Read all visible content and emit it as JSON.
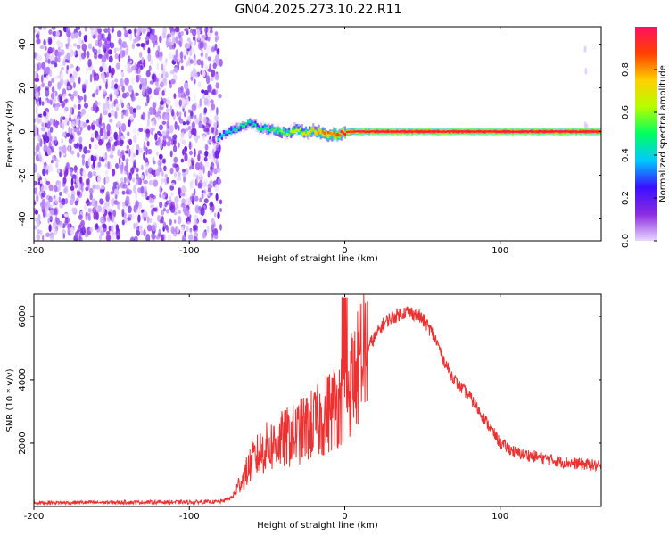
{
  "chart_data": [
    {
      "type": "heatmap",
      "title": "GN04.2025.273.10.22.R11",
      "xlabel": "Height of straight line (km)",
      "ylabel": "Frequency (Hz)",
      "xlim": [
        -200,
        165
      ],
      "ylim": [
        -50,
        48
      ],
      "xticks": [
        -200,
        -100,
        0,
        100
      ],
      "xtick_labels": [
        "-200",
        "-100",
        "0",
        "100"
      ],
      "yticks": [
        -40,
        -20,
        0,
        20,
        40
      ],
      "ytick_labels": [
        "-40",
        "-20",
        "0",
        "20",
        "40"
      ],
      "colorbar": {
        "label": "Normalized spectral amplitude",
        "range": [
          0,
          1
        ],
        "ticks": [
          0.0,
          0.2,
          0.4,
          0.6,
          0.8
        ],
        "tick_labels": [
          "0.0",
          "0.2",
          "0.4",
          "0.6",
          "0.8"
        ],
        "colors": [
          "#e9d6ff",
          "#8a2be2",
          "#3a10ff",
          "#00c8ff",
          "#00ff60",
          "#b4ff00",
          "#ffd000",
          "#ff4000",
          "#ff1060"
        ]
      },
      "noise_region_x": [
        -200,
        -82
      ],
      "signal_ridge": {
        "x": [
          -82,
          -75,
          -68,
          -62,
          -56,
          -50,
          -44,
          -38,
          -32,
          -26,
          -20,
          -14,
          -8,
          -2,
          5,
          20,
          60,
          100,
          165
        ],
        "freq": [
          -3,
          0,
          2,
          4,
          2,
          1,
          0.5,
          -1,
          1,
          -0.5,
          0.5,
          -1,
          -1.5,
          -0.5,
          0,
          0,
          0,
          0,
          0
        ],
        "amplitude": [
          0.35,
          0.38,
          0.4,
          0.42,
          0.4,
          0.45,
          0.5,
          0.55,
          0.6,
          0.65,
          0.7,
          0.75,
          0.8,
          0.85,
          0.9,
          0.95,
          0.95,
          0.95,
          0.95
        ]
      }
    },
    {
      "type": "line",
      "xlabel": "Height of straight line (km)",
      "ylabel": "SNR (10 * v/v)",
      "xlim": [
        -200,
        165
      ],
      "ylim": [
        0,
        6700
      ],
      "xticks": [
        -200,
        -100,
        0,
        100
      ],
      "xtick_labels": [
        "-200",
        "-100",
        "0",
        "100"
      ],
      "yticks": [
        2000,
        4000,
        6000
      ],
      "ytick_labels": [
        "2000",
        "4000",
        "6000"
      ],
      "color": "#ee3030",
      "series": [
        {
          "name": "SNR",
          "x": [
            -200,
            -150,
            -100,
            -80,
            -72,
            -68,
            -64,
            -60,
            -56,
            -52,
            -48,
            -44,
            -40,
            -36,
            -32,
            -28,
            -24,
            -20,
            -16,
            -12,
            -8,
            -4,
            0,
            4,
            8,
            12,
            16,
            20,
            24,
            28,
            32,
            36,
            40,
            44,
            48,
            52,
            56,
            60,
            64,
            68,
            72,
            76,
            80,
            84,
            88,
            92,
            96,
            100,
            110,
            120,
            130,
            140,
            150,
            160,
            165
          ],
          "y": [
            120,
            130,
            140,
            150,
            300,
            700,
            1000,
            1400,
            1600,
            1800,
            1900,
            2000,
            2100,
            2200,
            2250,
            2400,
            2500,
            2600,
            2700,
            2900,
            3100,
            3300,
            3600,
            3900,
            4300,
            4700,
            5100,
            5400,
            5700,
            5900,
            6000,
            6100,
            6150,
            6100,
            6000,
            5800,
            5500,
            5100,
            4600,
            4200,
            3900,
            3700,
            3500,
            3200,
            2900,
            2600,
            2300,
            2000,
            1700,
            1600,
            1500,
            1400,
            1350,
            1300,
            1250
          ]
        }
      ]
    }
  ]
}
